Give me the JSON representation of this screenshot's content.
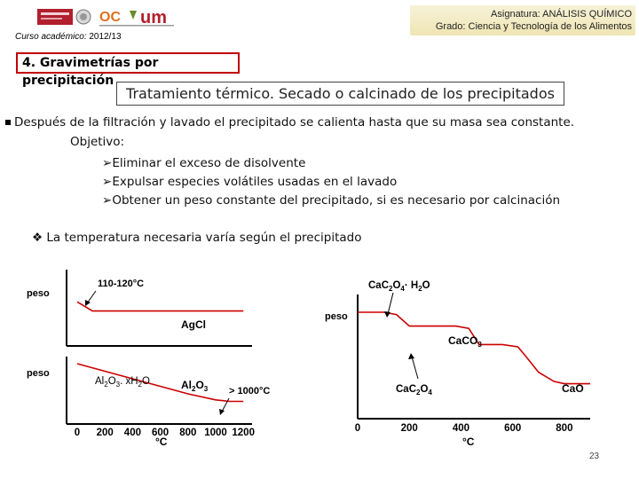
{
  "header": {
    "course_label": "Curso académico:",
    "course_year": "2012/13",
    "subject_line1": "Asignatura: ANÁLISIS QUÍMICO",
    "subject_line2": "Grado: Ciencia y Tecnología de los Alimentos",
    "logo_um": "um",
    "logo_oc": "OC"
  },
  "section_title": "4. Gravimetrías por precipitación",
  "topic_title": "Tratamiento térmico. Secado o calcinado de los precipitados",
  "body": {
    "bullet_main": "Después de la filtración y lavado el precipitado se calienta hasta que su masa sea constante.",
    "objective_label": "Objetivo:",
    "objectives": [
      "Eliminar el exceso de disolvente",
      "Expulsar especies volátiles usadas en el lavado",
      "Obtener un peso constante del precipitado, si es necesario por calcinación"
    ],
    "temp_note": "La temperatura necesaria varía según el precipitado"
  },
  "colors": {
    "accent": "#c00000",
    "curve": "#cc0000",
    "box_bg": "#f4edc9"
  },
  "chart_data": [
    {
      "type": "line",
      "series": [
        {
          "name": "AgCl",
          "x": [
            0,
            110,
            120,
            400,
            800,
            1200
          ],
          "y": [
            0.88,
            0.76,
            0.76,
            0.76,
            0.76,
            0.76
          ]
        },
        {
          "name": "Al2O3",
          "x": [
            0,
            200,
            400,
            600,
            800,
            1000,
            1100,
            1200
          ],
          "y": [
            0.4,
            0.35,
            0.3,
            0.25,
            0.2,
            0.16,
            0.15,
            0.15
          ]
        }
      ],
      "xlabel": "°C",
      "ylabel": "peso",
      "xlim": [
        0,
        1250
      ],
      "x_ticks": [
        "0",
        "200",
        "400",
        "600",
        "800",
        "1000",
        "1200"
      ],
      "annotations": {
        "agcl_temp": "110-120°C",
        "agcl_label": "AgCl",
        "al2o3_label": "Al",
        "al2o3_sub": "2",
        "al2o3_o": "O",
        "al2o3_sub2": "3",
        "al2o3_temp": "> 1000°C",
        "hydrate_al": "Al",
        "hydrate_sub1": "2",
        "hydrate_o": "O",
        "hydrate_sub2": "3",
        "hydrate_x": ". xH",
        "hydrate_sub3": "2",
        "hydrate_o2": "O",
        "peso1": "peso",
        "peso2": "peso"
      }
    },
    {
      "type": "line",
      "series": [
        {
          "name": "CaC2O4·H2O",
          "x": [
            0,
            100,
            150,
            200,
            230,
            380,
            430,
            470,
            560,
            620,
            650,
            700,
            760,
            800,
            900
          ],
          "y": [
            1.0,
            1.0,
            0.98,
            0.88,
            0.88,
            0.88,
            0.86,
            0.72,
            0.72,
            0.7,
            0.62,
            0.48,
            0.4,
            0.38,
            0.38
          ]
        }
      ],
      "xlabel": "°C",
      "ylabel": "peso",
      "xlim": [
        0,
        900
      ],
      "x_ticks": [
        "0",
        "200",
        "400",
        "600",
        "800"
      ],
      "annotations": {
        "top_label": "CaC",
        "top_sub1": "2",
        "top_o": "O",
        "top_sub2": "4",
        "top_dot": "· H",
        "top_sub3": "2",
        "top_o2": "O",
        "caco3": "CaCO",
        "caco3_sub": "3",
        "cac2o4": "CaC",
        "cac2o4_sub1": "2",
        "cac2o4_o": "O",
        "cac2o4_sub2": "4",
        "cao": "CaO"
      }
    }
  ],
  "page_number": "23"
}
